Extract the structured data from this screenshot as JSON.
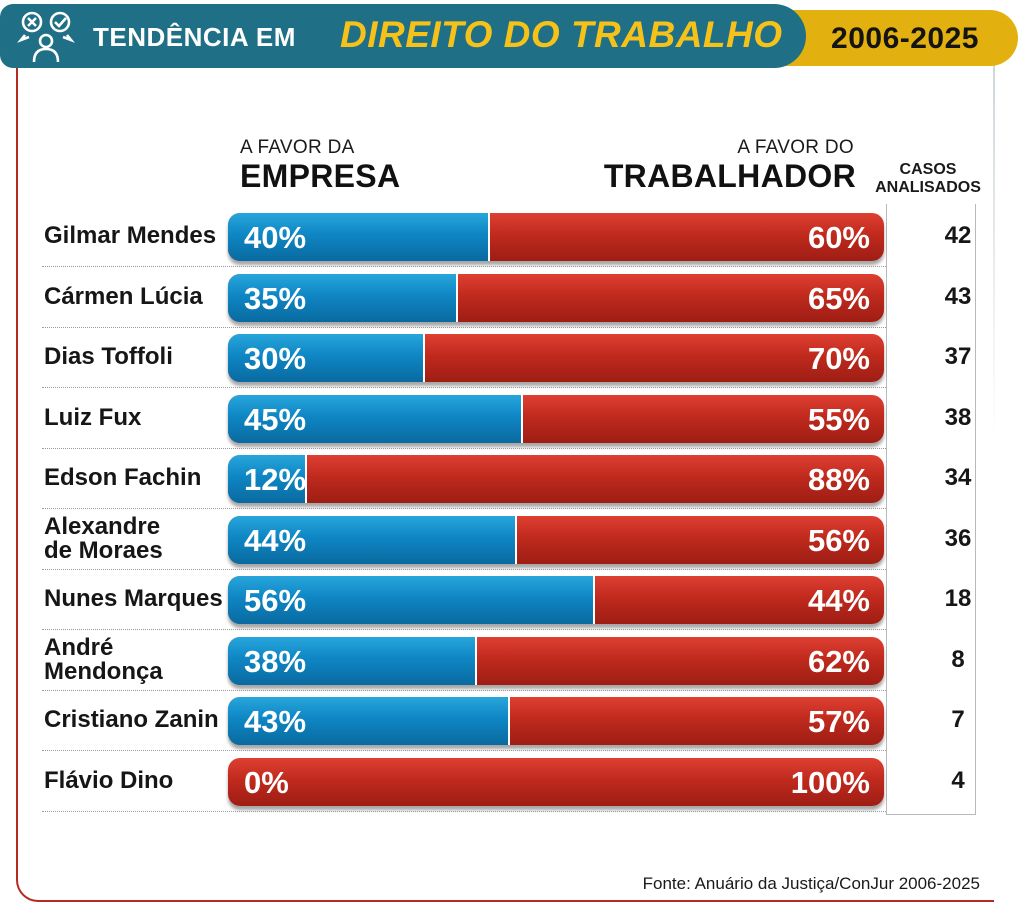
{
  "header": {
    "title_prefix": "TENDÊNCIA EM",
    "title_main": "DIREITO DO TRABALHO",
    "period": "2006-2025"
  },
  "columns": {
    "empresa_small": "A FAVOR DA",
    "empresa_big": "EMPRESA",
    "trabalhador_small": "A FAVOR DO",
    "trabalhador_big": "TRABALHADOR",
    "casos": "CASOS\nANALISADOS"
  },
  "colors": {
    "empresa": "#0e86c4",
    "trabalhador": "#c02a1d",
    "banner_teal": "#1f6f86",
    "banner_yellow": "#e3b10f",
    "title_accent": "#f6c21a"
  },
  "chart_data": {
    "type": "bar",
    "orientation": "horizontal-stacked-100",
    "categories": [
      "Gilmar Mendes",
      "Cármen Lúcia",
      "Dias Toffoli",
      "Luiz Fux",
      "Edson Fachin",
      "Alexandre\nde Moraes",
      "Nunes Marques",
      "André Mendonça",
      "Cristiano Zanin",
      "Flávio Dino"
    ],
    "series": [
      {
        "name": "A FAVOR DA EMPRESA",
        "values": [
          40,
          35,
          30,
          45,
          12,
          44,
          56,
          38,
          43,
          0
        ]
      },
      {
        "name": "A FAVOR DO TRABALHADOR",
        "values": [
          60,
          65,
          70,
          55,
          88,
          56,
          44,
          62,
          57,
          100
        ]
      }
    ],
    "labels_empresa": [
      "40%",
      "35%",
      "30%",
      "45%",
      "12%",
      "44%",
      "56%",
      "38%",
      "43%",
      "0%"
    ],
    "labels_trabalhador": [
      "60%",
      "65%",
      "70%",
      "55%",
      "88%",
      "56%",
      "44%",
      "62%",
      "57%",
      "100%"
    ],
    "casos_analisados": [
      "42",
      "43",
      "37",
      "38",
      "34",
      "36",
      "18",
      "8",
      "7",
      "4"
    ],
    "xlim": [
      0,
      100
    ]
  },
  "source": "Fonte: Anuário da Justiça/ConJur 2006-2025"
}
